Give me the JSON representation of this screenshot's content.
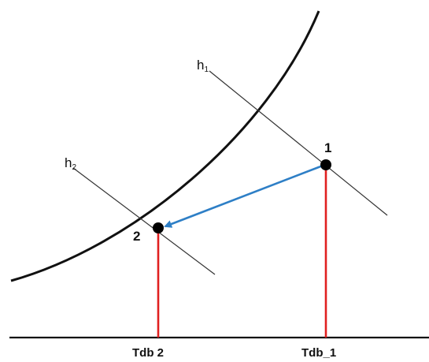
{
  "diagram": {
    "point_1_label": "1",
    "point_2_label": "2",
    "enthalpy_1": {
      "base": "h",
      "subscript": "1"
    },
    "enthalpy_2": {
      "base": "h",
      "subscript": "2"
    },
    "tdb_1_label": "Tdb_1",
    "tdb_2_label": "Tdb 2",
    "colors": {
      "curve": "#111111",
      "baseline": "#111111",
      "enthalpy_lines": "#333333",
      "process_arrow": "#2e7fc6",
      "projection_lines": "#e02020",
      "points": "#000000"
    }
  }
}
